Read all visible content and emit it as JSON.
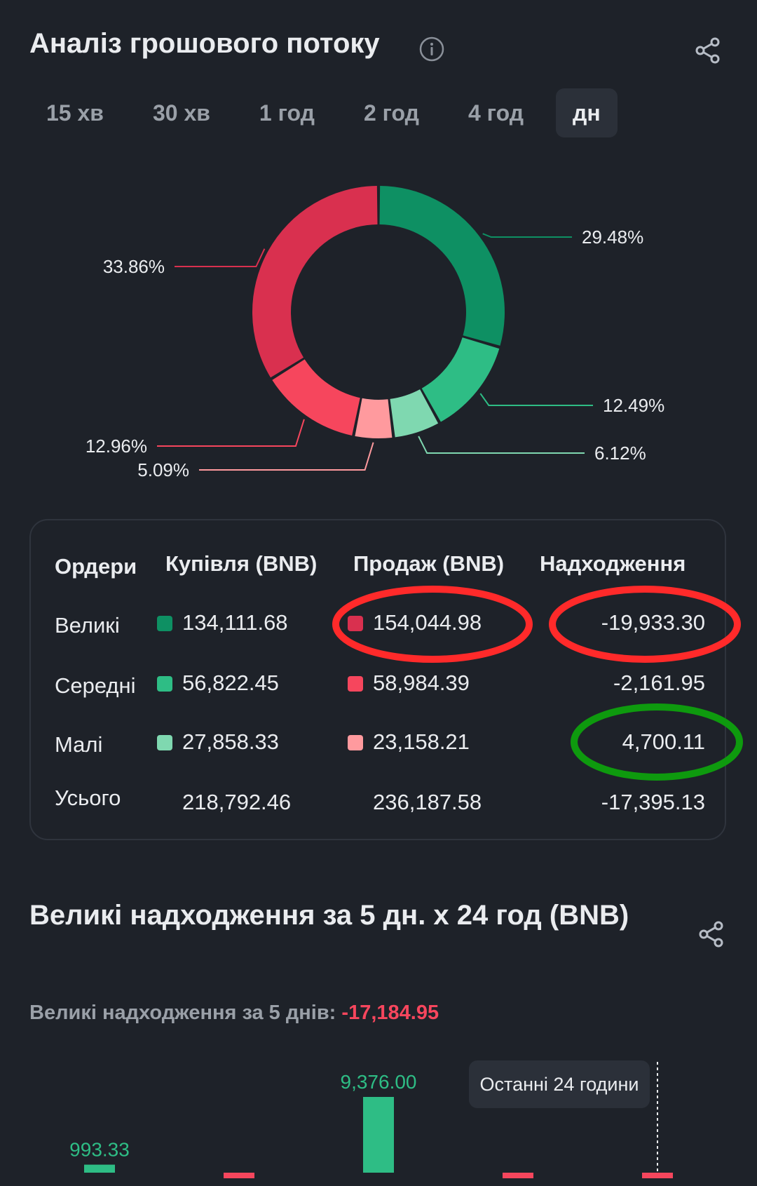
{
  "header": {
    "title": "Аналіз грошового потоку",
    "info_icon": "info-icon",
    "share_icon": "share-icon"
  },
  "tabs": [
    {
      "label": "15 хв",
      "active": false
    },
    {
      "label": "30 хв",
      "active": false
    },
    {
      "label": "1 год",
      "active": false
    },
    {
      "label": "2 год",
      "active": false
    },
    {
      "label": "4 год",
      "active": false
    },
    {
      "label": "дн",
      "active": true
    }
  ],
  "colors": {
    "buy_large": "#0e9063",
    "buy_medium": "#2ebd85",
    "buy_small": "#7fd8b0",
    "sell_large": "#d9304f",
    "sell_medium": "#f6465d",
    "sell_small": "#ff9a9e",
    "negative_text": "#f6465d"
  },
  "chart_data": [
    {
      "type": "pie",
      "categories": [
        "Купівля Великі",
        "Купівля Середні",
        "Купівля Малі",
        "Продаж Малі",
        "Продаж Середні",
        "Продаж Великі"
      ],
      "values": [
        29.48,
        12.49,
        6.12,
        5.09,
        12.96,
        33.86
      ],
      "labels": [
        "29.48%",
        "12.49%",
        "6.12%",
        "5.09%",
        "12.96%",
        "33.86%"
      ]
    },
    {
      "type": "bar",
      "values": [
        993.33,
        -200,
        9376.0,
        -200,
        -200
      ],
      "labels": [
        "993.33",
        "",
        "9,376.00",
        "",
        ""
      ]
    }
  ],
  "table": {
    "headers": [
      "Ордери",
      "Купівля (BNB)",
      "Продаж (BNB)",
      "Надходження"
    ],
    "rows": [
      {
        "name": "Великі",
        "buy": "134,111.68",
        "sell": "154,044.98",
        "inflow": "-19,933.30"
      },
      {
        "name": "Середні",
        "buy": "56,822.45",
        "sell": "58,984.39",
        "inflow": "-2,161.95"
      },
      {
        "name": "Малі",
        "buy": "27,858.33",
        "sell": "23,158.21",
        "inflow": "4,700.11"
      },
      {
        "name": "Усього",
        "buy": "218,792.46",
        "sell": "236,187.58",
        "inflow": "-17,395.13"
      }
    ]
  },
  "section2": {
    "title": "Великі надходження за 5 дн. х 24 год (BNB)",
    "subtitle_label": "Великі надходження за 5 днів:",
    "subtitle_value": "-17,184.95",
    "tooltip": "Останні 24 години"
  }
}
